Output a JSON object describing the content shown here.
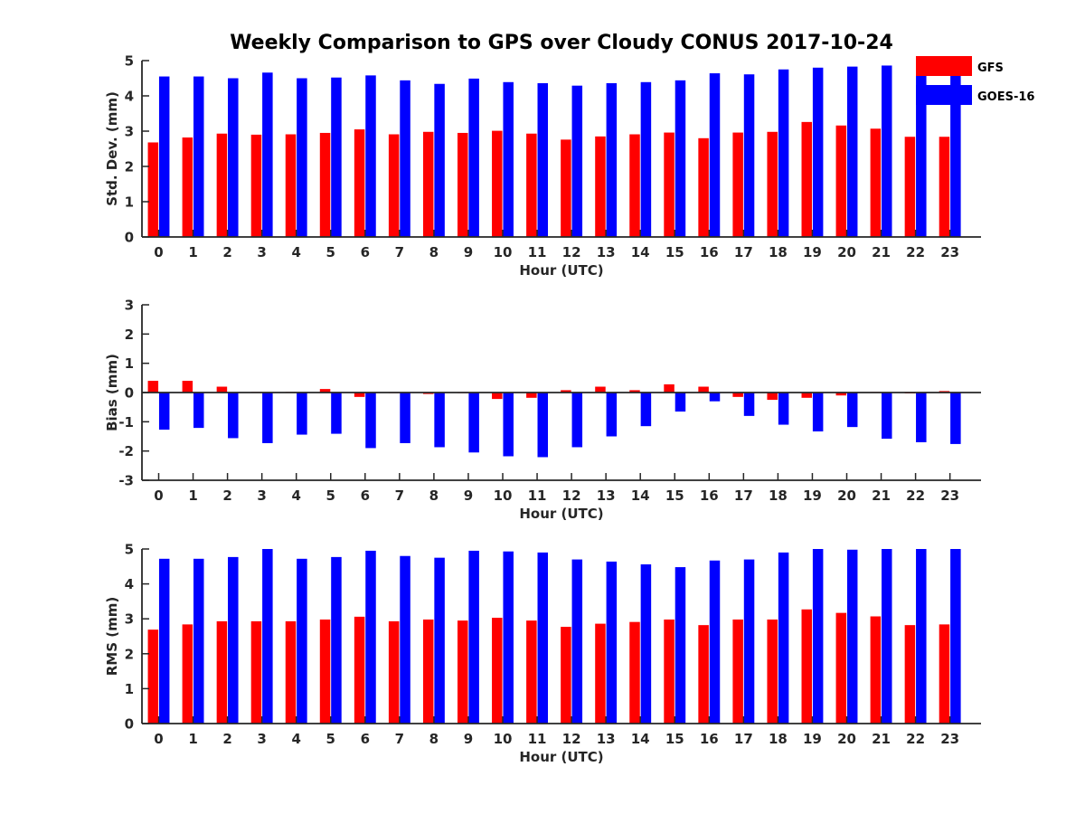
{
  "colors": {
    "gfs": "#ff0000",
    "goes": "#0000ff",
    "axis": "#262626"
  },
  "chart_data": [
    {
      "type": "bar",
      "title": "Weekly Comparison to GPS over Cloudy CONUS 2017-10-24",
      "xlabel": "Hour (UTC)",
      "ylabel": "Std. Dev. (mm)",
      "ylim": [
        0,
        5
      ],
      "yticks": [
        "0",
        "1",
        "2",
        "3",
        "4",
        "5"
      ],
      "categories": [
        "0",
        "1",
        "2",
        "3",
        "4",
        "5",
        "6",
        "7",
        "8",
        "9",
        "10",
        "11",
        "12",
        "13",
        "14",
        "15",
        "16",
        "17",
        "18",
        "19",
        "20",
        "21",
        "22",
        "23"
      ],
      "series": [
        {
          "name": "GFS",
          "values": [
            2.68,
            2.82,
            2.93,
            2.9,
            2.91,
            2.95,
            3.05,
            2.91,
            2.98,
            2.95,
            3.01,
            2.93,
            2.76,
            2.85,
            2.91,
            2.96,
            2.8,
            2.96,
            2.98,
            3.26,
            3.16,
            3.07,
            2.84,
            2.84
          ]
        },
        {
          "name": "GOES-16",
          "values": [
            4.55,
            4.55,
            4.5,
            4.66,
            4.5,
            4.52,
            4.58,
            4.44,
            4.34,
            4.49,
            4.39,
            4.36,
            4.29,
            4.36,
            4.39,
            4.44,
            4.64,
            4.61,
            4.75,
            4.8,
            4.83,
            4.86,
            4.8,
            4.75
          ]
        }
      ],
      "legend": {
        "position": "top-right",
        "entries": [
          "GFS",
          "GOES-16"
        ]
      }
    },
    {
      "type": "bar",
      "title": "",
      "xlabel": "Hour (UTC)",
      "ylabel": "Bias (mm)",
      "ylim": [
        -3,
        3
      ],
      "yticks": [
        "-3",
        "-2",
        "-1",
        "0",
        "1",
        "2",
        "3"
      ],
      "categories": [
        "0",
        "1",
        "2",
        "3",
        "4",
        "5",
        "6",
        "7",
        "8",
        "9",
        "10",
        "11",
        "12",
        "13",
        "14",
        "15",
        "16",
        "17",
        "18",
        "19",
        "20",
        "21",
        "22",
        "23"
      ],
      "series": [
        {
          "name": "GFS",
          "values": [
            0.4,
            0.4,
            0.2,
            0.02,
            0.02,
            0.12,
            -0.15,
            -0.02,
            -0.05,
            -0.02,
            -0.22,
            -0.18,
            0.08,
            0.2,
            0.08,
            0.28,
            0.2,
            -0.15,
            -0.25,
            -0.18,
            -0.1,
            0.02,
            -0.03,
            0.05
          ]
        },
        {
          "name": "GOES-16",
          "values": [
            -1.27,
            -1.21,
            -1.56,
            -1.73,
            -1.44,
            -1.41,
            -1.9,
            -1.73,
            -1.87,
            -2.05,
            -2.18,
            -2.21,
            -1.87,
            -1.5,
            -1.15,
            -0.65,
            -0.3,
            -0.8,
            -1.1,
            -1.33,
            -1.18,
            -1.58,
            -1.7,
            -1.76
          ]
        }
      ]
    },
    {
      "type": "bar",
      "title": "",
      "xlabel": "Hour (UTC)",
      "ylabel": "RMS (mm)",
      "ylim": [
        0,
        5
      ],
      "yticks": [
        "0",
        "1",
        "2",
        "3",
        "4",
        "5"
      ],
      "categories": [
        "0",
        "1",
        "2",
        "3",
        "4",
        "5",
        "6",
        "7",
        "8",
        "9",
        "10",
        "11",
        "12",
        "13",
        "14",
        "15",
        "16",
        "17",
        "18",
        "19",
        "20",
        "21",
        "22",
        "23"
      ],
      "series": [
        {
          "name": "GFS",
          "values": [
            2.69,
            2.84,
            2.93,
            2.93,
            2.93,
            2.98,
            3.06,
            2.93,
            2.98,
            2.95,
            3.03,
            2.95,
            2.77,
            2.86,
            2.91,
            2.98,
            2.82,
            2.98,
            2.98,
            3.27,
            3.17,
            3.07,
            2.82,
            2.84
          ]
        },
        {
          "name": "GOES-16",
          "values": [
            4.72,
            4.72,
            4.77,
            5.0,
            4.72,
            4.77,
            4.95,
            4.8,
            4.75,
            4.95,
            4.93,
            4.9,
            4.7,
            4.64,
            4.56,
            4.48,
            4.67,
            4.7,
            4.9,
            5.0,
            4.98,
            5.0,
            5.0,
            5.0
          ]
        }
      ]
    }
  ]
}
